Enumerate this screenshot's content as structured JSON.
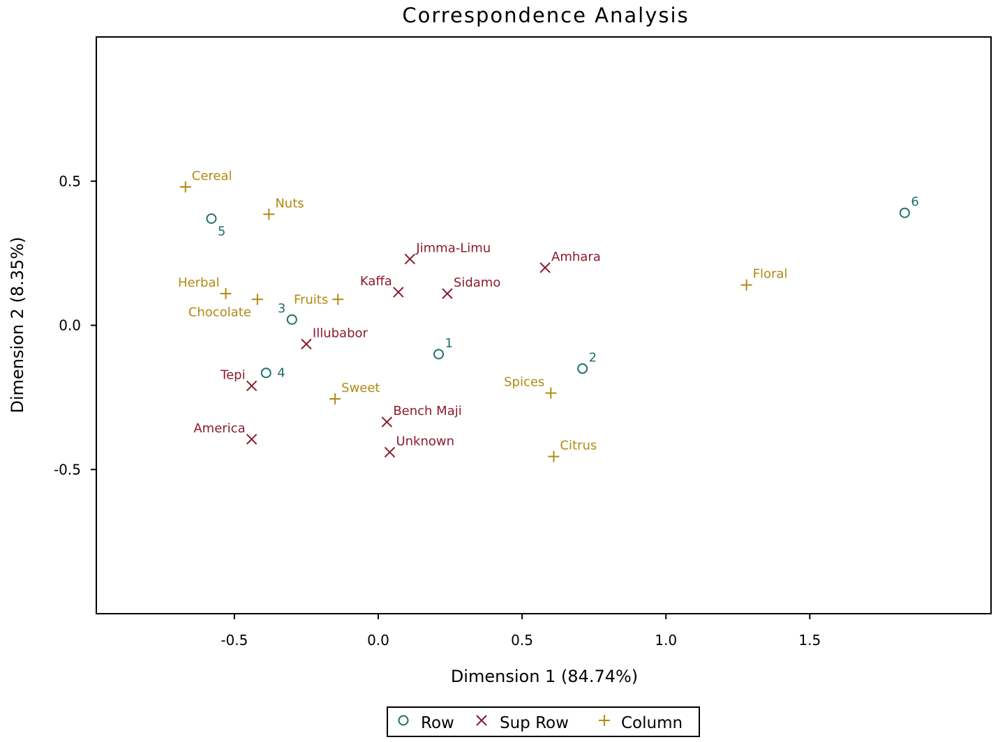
{
  "colors": {
    "row": "#1f6f6a",
    "suprow": "#8b1a2f",
    "column": "#b08a12",
    "axis": "#000000"
  },
  "chart_data": {
    "type": "scatter",
    "title": "Correspondence Analysis",
    "xlabel": "Dimension 1 (84.74%)",
    "ylabel": "Dimension 2 (8.35%)",
    "xlim": [
      -0.98,
      2.13
    ],
    "ylim": [
      -1.0,
      1.0
    ],
    "xticks": [
      -0.5,
      0.0,
      0.5,
      1.0,
      1.5
    ],
    "yticks": [
      0.5,
      0.0,
      -0.5
    ],
    "xtick_labels": [
      "-0.5",
      "0.0",
      "0.5",
      "1.0",
      "1.5"
    ],
    "ytick_labels": [
      "0.5",
      "0.0",
      "-0.5"
    ],
    "grid": false,
    "legend_position": "bottom",
    "legend": [
      {
        "key": "row",
        "label": "Row",
        "marker": "circle"
      },
      {
        "key": "suprow",
        "label": "Sup Row",
        "marker": "x"
      },
      {
        "key": "column",
        "label": "Column",
        "marker": "plus"
      }
    ],
    "series": [
      {
        "key": "row",
        "marker": "circle",
        "points": [
          {
            "label": "1",
            "x": 0.21,
            "y": -0.1,
            "anchor": "ur"
          },
          {
            "label": "2",
            "x": 0.71,
            "y": -0.15,
            "anchor": "ur"
          },
          {
            "label": "3",
            "x": -0.3,
            "y": 0.02,
            "anchor": "ul"
          },
          {
            "label": "4",
            "x": -0.39,
            "y": -0.165,
            "anchor": "r"
          },
          {
            "label": "5",
            "x": -0.58,
            "y": 0.37,
            "anchor": "lr"
          },
          {
            "label": "6",
            "x": 1.83,
            "y": 0.39,
            "anchor": "ur"
          }
        ]
      },
      {
        "key": "suprow",
        "marker": "x",
        "points": [
          {
            "label": "Jimma-Limu",
            "x": 0.11,
            "y": 0.23,
            "anchor": "ur"
          },
          {
            "label": "Amhara",
            "x": 0.58,
            "y": 0.2,
            "anchor": "ur"
          },
          {
            "label": "Kaffa",
            "x": 0.07,
            "y": 0.115,
            "anchor": "ul"
          },
          {
            "label": "Sidamo",
            "x": 0.24,
            "y": 0.11,
            "anchor": "ur"
          },
          {
            "label": "Illubabor",
            "x": -0.25,
            "y": -0.065,
            "anchor": "ur"
          },
          {
            "label": "Tepi",
            "x": -0.44,
            "y": -0.21,
            "anchor": "ul"
          },
          {
            "label": "America",
            "x": -0.44,
            "y": -0.395,
            "anchor": "ul"
          },
          {
            "label": "Bench Maji",
            "x": 0.03,
            "y": -0.335,
            "anchor": "ur"
          },
          {
            "label": "Unknown",
            "x": 0.04,
            "y": -0.44,
            "anchor": "ur"
          }
        ]
      },
      {
        "key": "column",
        "marker": "plus",
        "points": [
          {
            "label": "Cereal",
            "x": -0.67,
            "y": 0.48,
            "anchor": "ur"
          },
          {
            "label": "Nuts",
            "x": -0.38,
            "y": 0.385,
            "anchor": "ur"
          },
          {
            "label": "Herbal",
            "x": -0.53,
            "y": 0.11,
            "anchor": "ul"
          },
          {
            "label": "Chocolate",
            "x": -0.42,
            "y": 0.09,
            "anchor": "ll"
          },
          {
            "label": "Fruits",
            "x": -0.14,
            "y": 0.09,
            "anchor": "l"
          },
          {
            "label": "Floral",
            "x": 1.28,
            "y": 0.14,
            "anchor": "ur"
          },
          {
            "label": "Spices",
            "x": 0.6,
            "y": -0.235,
            "anchor": "ul"
          },
          {
            "label": "Sweet",
            "x": -0.15,
            "y": -0.255,
            "anchor": "ur"
          },
          {
            "label": "Citrus",
            "x": 0.61,
            "y": -0.455,
            "anchor": "ur"
          }
        ]
      }
    ]
  }
}
